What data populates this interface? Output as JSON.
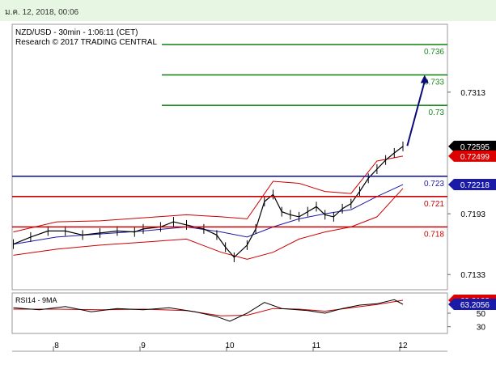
{
  "timestamp": "ม.ค. 12, 2018, 00:06",
  "chart_data": {
    "type": "line",
    "title": "NZD/USD - 30min - 1:06:11 (CET)",
    "subtitle": "Research © 2017 TRADING CENTRAL",
    "x_ticks": [
      "8",
      "9",
      "10",
      "11",
      "12"
    ],
    "price_panel": {
      "y_ticks": [
        "0.7313",
        "0.7193",
        "0.7133"
      ],
      "ylim": [
        0.7118,
        0.738
      ],
      "levels": [
        {
          "value": 0.736,
          "label": "0.736",
          "color": "#1f8a1f"
        },
        {
          "value": 0.733,
          "label": "0.733",
          "color": "#1f8a1f"
        },
        {
          "value": 0.73,
          "label": "0.73",
          "color": "#1f8a1f"
        },
        {
          "value": 0.723,
          "label": "0.723",
          "color": "#1a1aa8"
        },
        {
          "value": 0.721,
          "label": "0.721",
          "color": "#cc0000"
        },
        {
          "value": 0.718,
          "label": "0.718",
          "color": "#cc0000"
        }
      ],
      "price_badges": [
        {
          "value": 0.72595,
          "label": "0.72595",
          "bg": "#000000",
          "fg": "#ffffff"
        },
        {
          "value": 0.72499,
          "label": "0.72499",
          "bg": "#dd0000",
          "fg": "#ffffff"
        },
        {
          "value": 0.72218,
          "label": "0.72218",
          "bg": "#1a1aa8",
          "fg": "#ffffff"
        }
      ],
      "forecast_arrow": {
        "from": {
          "day": 12.05,
          "value": 0.726
        },
        "to": {
          "day": 12.25,
          "value": 0.733
        },
        "color": "#0a0a7a"
      },
      "close_series": [
        {
          "day": 7.5,
          "value": 0.7163
        },
        {
          "day": 7.7,
          "value": 0.717
        },
        {
          "day": 7.9,
          "value": 0.7176
        },
        {
          "day": 8.1,
          "value": 0.7176
        },
        {
          "day": 8.3,
          "value": 0.7172
        },
        {
          "day": 8.5,
          "value": 0.7174
        },
        {
          "day": 8.7,
          "value": 0.7176
        },
        {
          "day": 8.9,
          "value": 0.7175
        },
        {
          "day": 9.0,
          "value": 0.7178
        },
        {
          "day": 9.2,
          "value": 0.718
        },
        {
          "day": 9.35,
          "value": 0.7185
        },
        {
          "day": 9.5,
          "value": 0.7182
        },
        {
          "day": 9.7,
          "value": 0.7178
        },
        {
          "day": 9.85,
          "value": 0.7172
        },
        {
          "day": 9.95,
          "value": 0.716
        },
        {
          "day": 10.05,
          "value": 0.715
        },
        {
          "day": 10.2,
          "value": 0.7162
        },
        {
          "day": 10.3,
          "value": 0.7178
        },
        {
          "day": 10.4,
          "value": 0.7205
        },
        {
          "day": 10.5,
          "value": 0.7212
        },
        {
          "day": 10.6,
          "value": 0.7195
        },
        {
          "day": 10.7,
          "value": 0.7192
        },
        {
          "day": 10.8,
          "value": 0.719
        },
        {
          "day": 10.9,
          "value": 0.7195
        },
        {
          "day": 11.0,
          "value": 0.72
        },
        {
          "day": 11.1,
          "value": 0.7192
        },
        {
          "day": 11.2,
          "value": 0.719
        },
        {
          "day": 11.3,
          "value": 0.7198
        },
        {
          "day": 11.4,
          "value": 0.7203
        },
        {
          "day": 11.5,
          "value": 0.7215
        },
        {
          "day": 11.6,
          "value": 0.7228
        },
        {
          "day": 11.7,
          "value": 0.7237
        },
        {
          "day": 11.8,
          "value": 0.7246
        },
        {
          "day": 11.9,
          "value": 0.7253
        },
        {
          "day": 12.0,
          "value": 0.72595
        }
      ],
      "ma_series": [
        {
          "day": 7.5,
          "value": 0.7163
        },
        {
          "day": 8.0,
          "value": 0.717
        },
        {
          "day": 8.5,
          "value": 0.7173
        },
        {
          "day": 9.0,
          "value": 0.7176
        },
        {
          "day": 9.5,
          "value": 0.718
        },
        {
          "day": 9.9,
          "value": 0.7175
        },
        {
          "day": 10.2,
          "value": 0.717
        },
        {
          "day": 10.5,
          "value": 0.718
        },
        {
          "day": 10.8,
          "value": 0.7188
        },
        {
          "day": 11.1,
          "value": 0.7193
        },
        {
          "day": 11.4,
          "value": 0.7197
        },
        {
          "day": 11.7,
          "value": 0.721
        },
        {
          "day": 12.0,
          "value": 0.72218
        }
      ],
      "band_upper": [
        {
          "day": 7.5,
          "value": 0.7175
        },
        {
          "day": 8.0,
          "value": 0.7185
        },
        {
          "day": 8.5,
          "value": 0.7186
        },
        {
          "day": 9.0,
          "value": 0.7189
        },
        {
          "day": 9.5,
          "value": 0.7192
        },
        {
          "day": 9.9,
          "value": 0.719
        },
        {
          "day": 10.2,
          "value": 0.7188
        },
        {
          "day": 10.5,
          "value": 0.7225
        },
        {
          "day": 10.8,
          "value": 0.7223
        },
        {
          "day": 11.1,
          "value": 0.7215
        },
        {
          "day": 11.4,
          "value": 0.7213
        },
        {
          "day": 11.7,
          "value": 0.7245
        },
        {
          "day": 12.0,
          "value": 0.72499
        }
      ],
      "band_lower": [
        {
          "day": 7.5,
          "value": 0.7152
        },
        {
          "day": 8.0,
          "value": 0.7158
        },
        {
          "day": 8.5,
          "value": 0.7162
        },
        {
          "day": 9.0,
          "value": 0.7165
        },
        {
          "day": 9.5,
          "value": 0.7168
        },
        {
          "day": 9.9,
          "value": 0.7155
        },
        {
          "day": 10.2,
          "value": 0.7148
        },
        {
          "day": 10.5,
          "value": 0.7155
        },
        {
          "day": 10.8,
          "value": 0.7168
        },
        {
          "day": 11.1,
          "value": 0.7175
        },
        {
          "day": 11.4,
          "value": 0.718
        },
        {
          "day": 11.7,
          "value": 0.719
        },
        {
          "day": 12.0,
          "value": 0.7218
        }
      ]
    },
    "rsi_panel": {
      "label": "RSI14 - 9MA",
      "y_ticks": [
        "50",
        "30"
      ],
      "ylim": [
        20,
        80
      ],
      "badges": [
        {
          "value": 69.2123,
          "label": "69.2123",
          "bg": "#dd0000",
          "fg": "#ffffff"
        },
        {
          "value": 63.2056,
          "label": "63.2056",
          "bg": "#1a1aa8",
          "fg": "#ffffff"
        }
      ],
      "rsi_series": [
        {
          "day": 7.5,
          "value": 58
        },
        {
          "day": 7.8,
          "value": 55
        },
        {
          "day": 8.1,
          "value": 60
        },
        {
          "day": 8.4,
          "value": 52
        },
        {
          "day": 8.7,
          "value": 57
        },
        {
          "day": 9.0,
          "value": 55
        },
        {
          "day": 9.3,
          "value": 58
        },
        {
          "day": 9.6,
          "value": 52
        },
        {
          "day": 9.85,
          "value": 45
        },
        {
          "day": 10.0,
          "value": 38
        },
        {
          "day": 10.2,
          "value": 50
        },
        {
          "day": 10.4,
          "value": 66
        },
        {
          "day": 10.6,
          "value": 57
        },
        {
          "day": 10.9,
          "value": 54
        },
        {
          "day": 11.1,
          "value": 50
        },
        {
          "day": 11.3,
          "value": 57
        },
        {
          "day": 11.5,
          "value": 62
        },
        {
          "day": 11.7,
          "value": 64
        },
        {
          "day": 11.9,
          "value": 70
        },
        {
          "day": 12.0,
          "value": 63.2056
        }
      ],
      "ma_series": [
        {
          "day": 7.5,
          "value": 56
        },
        {
          "day": 8.0,
          "value": 56
        },
        {
          "day": 8.5,
          "value": 55
        },
        {
          "day": 9.0,
          "value": 56
        },
        {
          "day": 9.5,
          "value": 54
        },
        {
          "day": 9.9,
          "value": 46
        },
        {
          "day": 10.2,
          "value": 47
        },
        {
          "day": 10.5,
          "value": 57
        },
        {
          "day": 10.8,
          "value": 56
        },
        {
          "day": 11.1,
          "value": 53
        },
        {
          "day": 11.4,
          "value": 58
        },
        {
          "day": 11.7,
          "value": 63
        },
        {
          "day": 12.0,
          "value": 69.2123
        }
      ]
    },
    "colors": {
      "price": "#000000",
      "ma": "#1a1aa8",
      "band": "#cc0000",
      "rsi": "#000000",
      "rsi_ma": "#cc0000"
    }
  }
}
